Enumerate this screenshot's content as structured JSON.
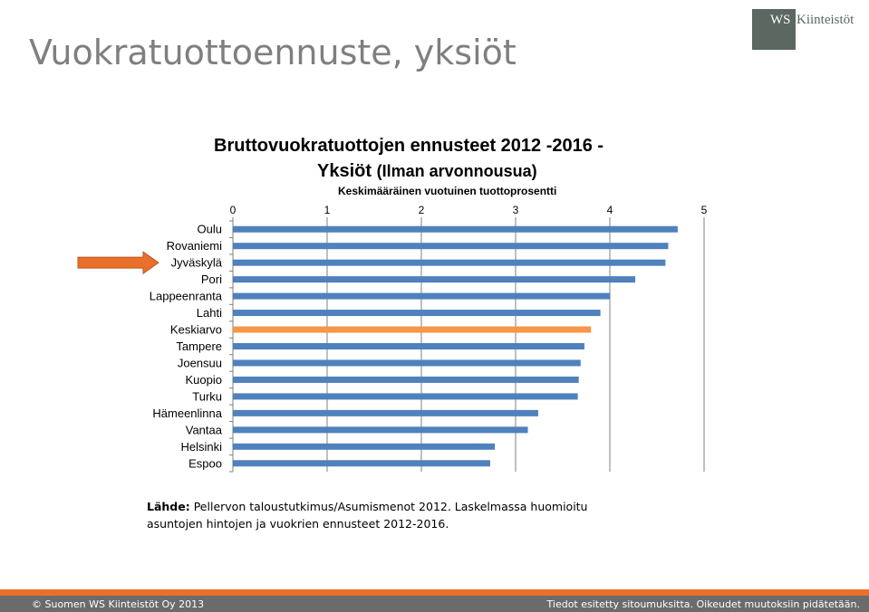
{
  "slide": {
    "title": "Vuokratuottoennuste, yksiöt"
  },
  "logo": {
    "ws": "WS",
    "name": "Kiinteistöt"
  },
  "chart_header": {
    "title_line1": "Bruttovuokratuottojen ennusteet 2012 -2016  -",
    "title_line2_main": "Yksiöt",
    "title_line2_sub": "(Ilman arvonnousua)",
    "subtitle": "Keskimääräinen vuotuinen tuottoprosentti"
  },
  "chart_data": {
    "type": "bar",
    "orientation": "horizontal",
    "title": "Bruttovuokratuottojen ennusteet 2012 -2016  - Yksiöt (Ilman arvonnousua)",
    "subtitle": "Keskimääräinen vuotuinen tuottoprosentti",
    "categories": [
      "Oulu",
      "Rovaniemi",
      "Jyväskylä",
      "Pori",
      "Lappeenranta",
      "Lahti",
      "Keskiarvo",
      "Tampere",
      "Joensuu",
      "Kuopio",
      "Turku",
      "Hämeenlinna",
      "Vantaa",
      "Helsinki",
      "Espoo"
    ],
    "values": [
      4.72,
      4.62,
      4.59,
      4.27,
      4.0,
      3.9,
      3.8,
      3.73,
      3.69,
      3.67,
      3.66,
      3.24,
      3.13,
      2.78,
      2.73
    ],
    "xlim": [
      0,
      5
    ],
    "xticks": [
      "0",
      "1",
      "2",
      "3",
      "4",
      "5"
    ],
    "grid": true,
    "axis_position": "top",
    "bar_color": "#4f81bd",
    "highlight_category": "Keskiarvo",
    "highlight_color": "#f79646",
    "arrow_target": "Jyväskylä",
    "arrow_color": "#e8702a"
  },
  "source": {
    "label": "Lähde:",
    "line1": "Pellervon taloustutkimus/Asumismenot 2012. Laskelmassa huomioitu",
    "line2": "asuntojen hintojen ja vuokrien ennusteet 2012-2016."
  },
  "footer": {
    "left": "© Suomen WS Kiinteistöt Oy 2013",
    "right": "Tiedot esitetty sitoumuksitta. Oikeudet muutoksiin pidätetään."
  }
}
